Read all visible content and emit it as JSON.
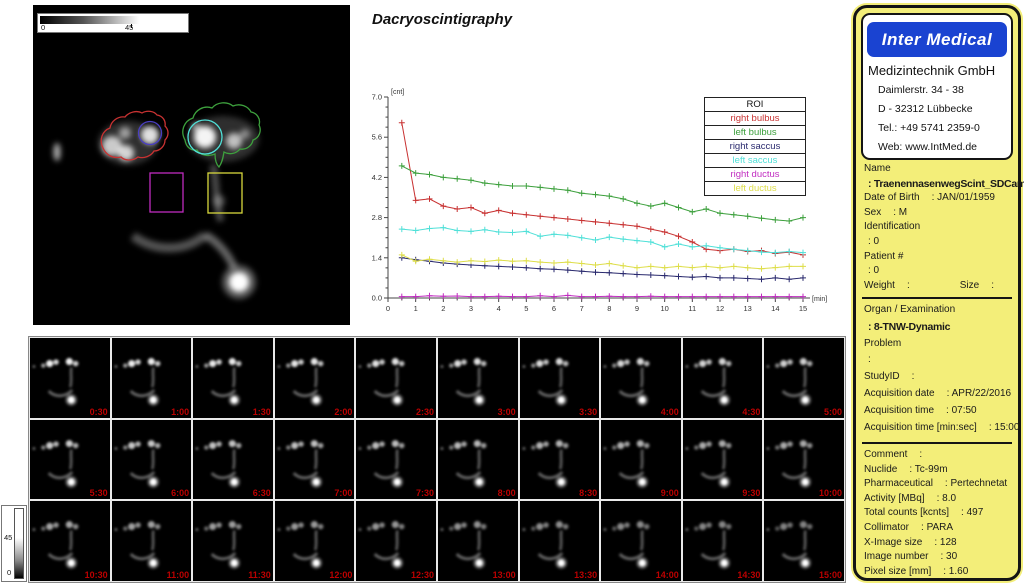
{
  "title": "Dacryoscintigraphy",
  "main_image": {
    "colorbar": {
      "min": "0",
      "max": "45"
    },
    "rois": [
      {
        "name": "right bulbus",
        "shape": "freehand",
        "color": "#c83232"
      },
      {
        "name": "right saccus",
        "shape": "circle",
        "color": "#4a3fc0"
      },
      {
        "name": "left bulbus",
        "shape": "freehand",
        "color": "#3da03d"
      },
      {
        "name": "left saccus",
        "shape": "circle",
        "color": "#50e0d8"
      },
      {
        "name": "right ductus",
        "shape": "rectangle",
        "color": "#c02cc0"
      },
      {
        "name": "left ductus",
        "shape": "rectangle",
        "color": "#d8d83c"
      }
    ]
  },
  "chart_data": {
    "type": "line",
    "title": "Dacryoscintigraphy",
    "xlabel": "[min]",
    "ylabel": "[cnt]",
    "xlim": [
      0,
      15
    ],
    "ylim": [
      0,
      7
    ],
    "x_tick_labels": [
      "0",
      "1",
      "2",
      "3",
      "4",
      "5",
      "6",
      "7",
      "8",
      "9",
      "10",
      "11",
      "12",
      "13",
      "14",
      "15"
    ],
    "y_tick_labels": [
      "0.0",
      "1.4",
      "2.8",
      "4.2",
      "5.6",
      "7.0"
    ],
    "legend": {
      "header": "ROI",
      "position": "top-right"
    },
    "x": [
      0.5,
      1,
      1.5,
      2,
      2.5,
      3,
      3.5,
      4,
      4.5,
      5,
      5.5,
      6,
      6.5,
      7,
      7.5,
      8,
      8.5,
      9,
      9.5,
      10,
      10.5,
      11,
      11.5,
      12,
      12.5,
      13,
      13.5,
      14,
      14.5,
      15
    ],
    "series": [
      {
        "name": "right bulbus",
        "color": "#c83232",
        "values": [
          6.1,
          3.4,
          3.45,
          3.2,
          3.1,
          3.15,
          2.95,
          3.05,
          2.95,
          2.9,
          2.85,
          2.8,
          2.75,
          2.7,
          2.65,
          2.6,
          2.55,
          2.5,
          2.4,
          2.3,
          2.15,
          1.95,
          1.7,
          1.65,
          1.7,
          1.62,
          1.65,
          1.55,
          1.6,
          1.5
        ]
      },
      {
        "name": "left bulbus",
        "color": "#3da03d",
        "values": [
          4.6,
          4.35,
          4.3,
          4.2,
          4.15,
          4.1,
          4.0,
          3.95,
          3.9,
          3.9,
          3.85,
          3.8,
          3.75,
          3.65,
          3.6,
          3.55,
          3.45,
          3.3,
          3.2,
          3.3,
          3.15,
          3.0,
          3.1,
          2.95,
          2.9,
          2.85,
          2.78,
          2.72,
          2.68,
          2.8
        ]
      },
      {
        "name": "right saccus",
        "color": "#2a2a6e",
        "values": [
          1.4,
          1.33,
          1.28,
          1.22,
          1.18,
          1.15,
          1.12,
          1.1,
          1.08,
          1.05,
          1.02,
          1.0,
          0.97,
          0.93,
          0.9,
          0.88,
          0.85,
          0.82,
          0.8,
          0.78,
          0.75,
          0.72,
          0.75,
          0.7,
          0.7,
          0.68,
          0.65,
          0.7,
          0.65,
          0.7
        ]
      },
      {
        "name": "left saccus",
        "color": "#50e0d8",
        "values": [
          2.4,
          2.35,
          2.42,
          2.45,
          2.35,
          2.32,
          2.38,
          2.3,
          2.28,
          2.32,
          2.15,
          2.22,
          2.18,
          2.1,
          2.02,
          2.12,
          2.05,
          2.0,
          1.95,
          1.78,
          1.88,
          1.78,
          1.82,
          1.75,
          1.7,
          1.65,
          1.6,
          1.58,
          1.62,
          1.58
        ]
      },
      {
        "name": "right ductus",
        "color": "#c02cc0",
        "values": [
          0.05,
          0.05,
          0.08,
          0.06,
          0.07,
          0.05,
          0.05,
          0.06,
          0.05,
          0.05,
          0.08,
          0.05,
          0.09,
          0.05,
          0.05,
          0.06,
          0.05,
          0.05,
          0.06,
          0.05,
          0.05,
          0.05,
          0.05,
          0.05,
          0.05,
          0.05,
          0.05,
          0.05,
          0.05,
          0.05
        ]
      },
      {
        "name": "left ductus",
        "color": "#dede4a",
        "values": [
          1.5,
          1.28,
          1.35,
          1.3,
          1.25,
          1.3,
          1.27,
          1.32,
          1.28,
          1.3,
          1.25,
          1.22,
          1.25,
          1.2,
          1.15,
          1.2,
          1.12,
          1.05,
          1.1,
          1.05,
          1.1,
          1.06,
          1.1,
          1.05,
          1.1,
          1.05,
          1.02,
          1.06,
          1.1,
          1.1
        ]
      }
    ]
  },
  "info_panel": {
    "logo": "Inter Medical",
    "company": "Medizintechnik GmbH",
    "address": [
      "Daimlerstr. 34 - 38",
      "D - 32312 Lübbecke",
      "Tel.: +49 5741 2359-0",
      "Web: www.IntMed.de"
    ],
    "sections": [
      {
        "rows": [
          {
            "label": "Name"
          },
          {
            "value": ": TraenennasenwegScint_SDCam",
            "bold": true
          },
          {
            "label": "Date of Birth",
            "value": ": JAN/01/1959"
          },
          {
            "label": "Sex",
            "value": ": M"
          },
          {
            "label": "Identification"
          },
          {
            "value": ": 0"
          },
          {
            "label": "Patient #"
          },
          {
            "value": ": 0"
          },
          {
            "label": "Weight",
            "value": ":",
            "label2": "Size",
            "value2": ":"
          }
        ]
      },
      {
        "rows": [
          {
            "label": "Organ / Examination"
          },
          {
            "value": ": 8-TNW-Dynamic",
            "bold": true
          },
          {
            "label": "Problem"
          },
          {
            "value": ":"
          },
          {
            "label": "StudyID",
            "value": ":"
          },
          {
            "label": "Acquisition date",
            "value": ": APR/22/2016"
          },
          {
            "label": "Acquisition time",
            "value": ": 07:50"
          },
          {
            "label": "Acquisition time [min:sec]",
            "value": ": 15:00"
          }
        ]
      },
      {
        "rows": [
          {
            "label": "Comment",
            "value": ":"
          },
          {
            "label": "Nuclide",
            "value": ": Tc-99m"
          },
          {
            "label": "Pharmaceutical",
            "value": ": Pertechnetat"
          },
          {
            "label": "Activity [MBq]",
            "value": ":  8.0"
          },
          {
            "label": "Total counts [kcnts]",
            "value": ": 497"
          },
          {
            "label": "Collimator",
            "value": ": PARA"
          },
          {
            "label": "X-Image size",
            "value": ": 128"
          },
          {
            "label": "Image number",
            "value": ":  30"
          },
          {
            "label": "Pixel size [mm]",
            "value": ": 1.60"
          }
        ]
      }
    ]
  },
  "thumbnails": {
    "colorbar": {
      "max": "45",
      "min": "0"
    },
    "timestamps": [
      "0:30",
      "1:00",
      "1:30",
      "2:00",
      "2:30",
      "3:00",
      "3:30",
      "4:00",
      "4:30",
      "5:00",
      "5:30",
      "6:00",
      "6:30",
      "7:00",
      "7:30",
      "8:00",
      "8:30",
      "9:00",
      "9:30",
      "10:00",
      "10:30",
      "11:00",
      "11:30",
      "12:00",
      "12:30",
      "13:00",
      "13:30",
      "14:00",
      "14:30",
      "15:00"
    ]
  }
}
